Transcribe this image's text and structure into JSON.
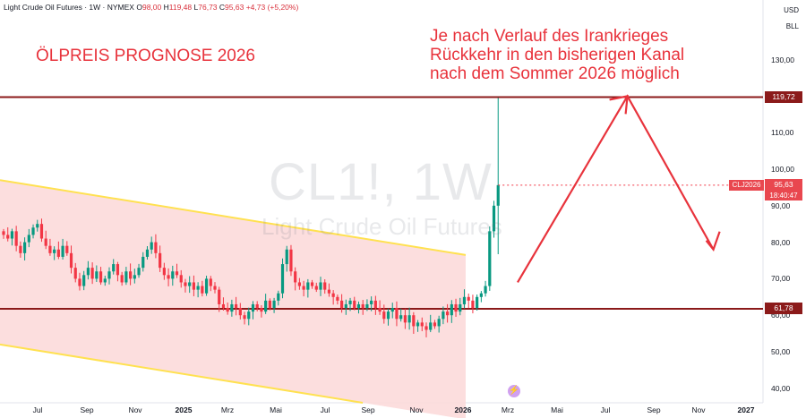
{
  "header": {
    "symbol": "Light Crude Oil Futures · 1W · NYMEX",
    "o_label": "O",
    "o_value": "98,00",
    "h_label": "H",
    "h_value": "119,48",
    "l_label": "L",
    "l_value": "76,73",
    "c_label": "C",
    "c_value": "95,63",
    "change": "+4,73 (+5,20%)"
  },
  "currency": "USD",
  "unit": "BLL",
  "watermark": {
    "ticker": "CL1!, 1W",
    "name": "Light Crude Oil Futures"
  },
  "annotation": {
    "title": "ÖLPREIS PROGNOSE 2026",
    "note_lines": [
      "Je nach Verlauf des Irankrieges",
      "Rückkehr in den bisherigen Kanal",
      "nach dem Sommer 2026 möglich"
    ]
  },
  "flash_icon": "lightning-icon",
  "colors": {
    "up": "#089981",
    "down": "#f23645",
    "channel_fill": "#fcdada",
    "channel_line": "#ffe150",
    "level_line": "#8b1a1a",
    "annotation": "#e8333c",
    "price_line": "#f23645"
  },
  "chart_data": {
    "type": "candlestick",
    "title": "ÖLPREIS PROGNOSE 2026",
    "ylim": [
      37,
      142
    ],
    "y_ticks": [
      "130,00",
      "110,00",
      "100,00",
      "90,00",
      "80,00",
      "70,00",
      "60,00",
      "50,00",
      "40,00"
    ],
    "x_ticks": [
      {
        "label": "Jul",
        "bold": false
      },
      {
        "label": "Sep",
        "bold": false
      },
      {
        "label": "Nov",
        "bold": false
      },
      {
        "label": "2025",
        "bold": true
      },
      {
        "label": "Mrz",
        "bold": false
      },
      {
        "label": "Mai",
        "bold": false
      },
      {
        "label": "Jul",
        "bold": false
      },
      {
        "label": "Sep",
        "bold": false
      },
      {
        "label": "Nov",
        "bold": false
      },
      {
        "label": "2026",
        "bold": true
      },
      {
        "label": "Mrz",
        "bold": false
      },
      {
        "label": "Mai",
        "bold": false
      },
      {
        "label": "Jul",
        "bold": false
      },
      {
        "label": "Sep",
        "bold": false
      },
      {
        "label": "Nov",
        "bold": false
      },
      {
        "label": "2027",
        "bold": true
      }
    ],
    "levels": [
      {
        "value": 119.72,
        "label": "119,72"
      },
      {
        "value": 61.78,
        "label": "61,78"
      }
    ],
    "last_price": {
      "value": 95.63,
      "label": "95,63",
      "symbol": "CLJ2026",
      "countdown": "18:40:47"
    },
    "channel": {
      "upper": [
        [
          0,
          97
        ],
        [
          520,
          76.5
        ]
      ],
      "lower": [
        [
          0,
          52
        ],
        [
          405,
          37
        ]
      ]
    },
    "closes": [
      82,
      81,
      83,
      79,
      77,
      80,
      82,
      84,
      85,
      81,
      79,
      77,
      78,
      76,
      79,
      77,
      73,
      70,
      68,
      71,
      73,
      70,
      72,
      69,
      70,
      72,
      74,
      71,
      69,
      72,
      70,
      71,
      73,
      76,
      78,
      80,
      77,
      73,
      71,
      70,
      72,
      71,
      69,
      68,
      69,
      67,
      68,
      66,
      70,
      68,
      67,
      63,
      62,
      61,
      63,
      62,
      60,
      59,
      61,
      63,
      62,
      61,
      64,
      62,
      64,
      66,
      74,
      78,
      72,
      69,
      68,
      67,
      69,
      68,
      67,
      69,
      67,
      66,
      65,
      64,
      62,
      63,
      64,
      62,
      63,
      62,
      63,
      64,
      62,
      61,
      59,
      61,
      62,
      59,
      60,
      58,
      60,
      57,
      58,
      57,
      56,
      58,
      57,
      59,
      61,
      60,
      63,
      61,
      63,
      65,
      64,
      62,
      65,
      66,
      68,
      83,
      90,
      95.63
    ],
    "projection": [
      [
        2026.58,
        120
      ],
      [
        2026.88,
        78
      ]
    ]
  }
}
